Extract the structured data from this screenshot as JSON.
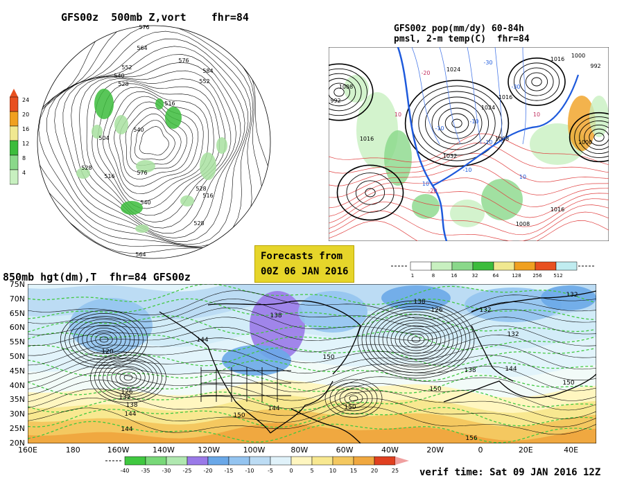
{
  "panel_hemisphere": {
    "title": "GFS00z  500mb Z,vort    fhr=84",
    "scale_labels": [
      "4",
      "8",
      "12",
      "16",
      "20",
      "24"
    ],
    "scale_colors": [
      "#c8f0c0",
      "#8ad88a",
      "#3cbc3c",
      "#f0e890",
      "#f0a020",
      "#e85020"
    ],
    "contour_labels": [
      "576",
      "564",
      "552",
      "540",
      "528",
      "516",
      "504",
      "576",
      "584",
      "552",
      "540",
      "528",
      "516",
      "540",
      "528",
      "516",
      "528",
      "564",
      "576"
    ]
  },
  "panel_pop": {
    "title_line1": "GFS00z pop(mm/dy) 60-84h",
    "title_line2": "pmsl, 2-m temp(C)  fhr=84",
    "scale_labels": [
      "1",
      "8",
      "16",
      "32",
      "64",
      "128",
      "256",
      "512"
    ],
    "scale_colors": [
      "#ffffff",
      "#c8f0c0",
      "#8ad88a",
      "#3cbc3c",
      "#f0e890",
      "#f0a020",
      "#e85020",
      "#c0ecf0"
    ],
    "contour_labels": [
      "1008",
      "992",
      "1016",
      "1024",
      "1016",
      "1008",
      "1032",
      "1024",
      "1000",
      "1000",
      "1016",
      "992",
      "1016",
      "1008"
    ],
    "temp_labels": [
      "-20",
      "-30",
      "-10",
      "10",
      "-10",
      "-30",
      "10",
      "-10",
      "-10",
      "-20",
      "10",
      "10"
    ]
  },
  "forecast_badge": {
    "line1": "Forecasts from",
    "line2": "00Z 06 JAN 2016"
  },
  "panel_850": {
    "title": "850mb hgt(dm),T  fhr=84 GFS00z",
    "lat_labels": [
      "75N",
      "70N",
      "65N",
      "60N",
      "55N",
      "50N",
      "45N",
      "40N",
      "35N",
      "30N",
      "25N",
      "20N"
    ],
    "lon_labels": [
      "160E",
      "180",
      "160W",
      "140W",
      "120W",
      "100W",
      "80W",
      "60W",
      "40W",
      "20W",
      "0",
      "20E",
      "40E"
    ],
    "contour_labels": [
      "132",
      "138",
      "120",
      "144",
      "126",
      "132",
      "138",
      "144",
      "150",
      "138",
      "150",
      "132",
      "126",
      "138",
      "132",
      "144",
      "150",
      "144",
      "150",
      "150",
      "144",
      "156"
    ],
    "scale_labels": [
      "-40",
      "-35",
      "-30",
      "-25",
      "-20",
      "-15",
      "-10",
      "-5",
      "0",
      "5",
      "10",
      "15",
      "20",
      "25"
    ],
    "scale_colors": [
      "#40c840",
      "#78d878",
      "#b0e8b0",
      "#9a7ae8",
      "#6aa8e8",
      "#94c4f0",
      "#bcdcf4",
      "#e0f2fa",
      "#fff6c0",
      "#f8e890",
      "#f4c860",
      "#f0a840",
      "#e04020"
    ],
    "verif_time": "verif time: Sat 09 JAN 2016 12Z"
  }
}
